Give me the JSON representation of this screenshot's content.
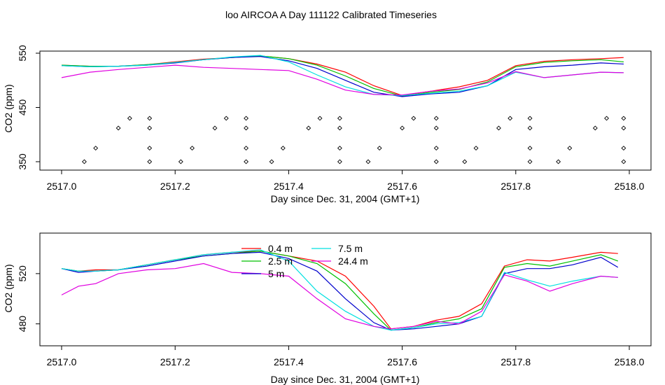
{
  "title": "loo AIRCOA A  Day 111122  Calibrated Timeseries",
  "chart_data": [
    {
      "type": "line",
      "xlabel": "Day since Dec. 31, 2004 (GMT+1)",
      "ylabel": "CO2 (ppm)",
      "xlim": [
        2517.0,
        2518.0
      ],
      "ylim": [
        350,
        550
      ],
      "xticks": [
        2517.0,
        2517.2,
        2517.4,
        2517.6,
        2517.8,
        2518.0
      ],
      "xtick_labels": [
        "2517.0",
        "2517.2",
        "2517.4",
        "2517.6",
        "2517.8",
        "2518.0"
      ],
      "yticks": [
        350,
        450,
        550
      ],
      "ytick_labels": [
        "350",
        "450",
        "550"
      ],
      "grid": false,
      "series": [
        {
          "color": "#ff0000",
          "x": [
            2517.0,
            2517.05,
            2517.1,
            2517.15,
            2517.2,
            2517.25,
            2517.3,
            2517.35,
            2517.4,
            2517.45,
            2517.5,
            2517.55,
            2517.6,
            2517.65,
            2517.7,
            2517.75,
            2517.8,
            2517.85,
            2517.9,
            2517.95,
            2517.99
          ],
          "y": [
            528,
            526,
            526,
            529,
            534,
            539,
            542,
            545,
            540,
            530,
            515,
            490,
            472,
            480,
            488,
            500,
            527,
            535,
            538,
            540,
            542
          ]
        },
        {
          "color": "#00c000",
          "x": [
            2517.0,
            2517.05,
            2517.1,
            2517.15,
            2517.2,
            2517.25,
            2517.3,
            2517.35,
            2517.4,
            2517.45,
            2517.5,
            2517.55,
            2517.6,
            2517.65,
            2517.7,
            2517.75,
            2517.8,
            2517.85,
            2517.9,
            2517.95,
            2517.99
          ],
          "y": [
            528,
            526,
            526,
            529,
            533,
            538,
            542,
            545,
            540,
            528,
            508,
            485,
            471,
            478,
            483,
            497,
            525,
            533,
            536,
            538,
            534
          ]
        },
        {
          "color": "#0000cc",
          "x": [
            2517.0,
            2517.05,
            2517.1,
            2517.15,
            2517.2,
            2517.25,
            2517.3,
            2517.35,
            2517.4,
            2517.45,
            2517.5,
            2517.55,
            2517.6,
            2517.65,
            2517.7,
            2517.75,
            2517.8,
            2517.85,
            2517.9,
            2517.95,
            2517.99
          ],
          "y": [
            527,
            525,
            526,
            528,
            532,
            538,
            542,
            544,
            536,
            522,
            500,
            478,
            470,
            475,
            478,
            490,
            520,
            525,
            528,
            532,
            530
          ]
        },
        {
          "color": "#00e0e0",
          "x": [
            2517.0,
            2517.05,
            2517.1,
            2517.15,
            2517.2,
            2517.25,
            2517.3,
            2517.35,
            2517.4,
            2517.45,
            2517.5,
            2517.55,
            2517.6,
            2517.65,
            2517.7,
            2517.75,
            2517.8,
            2517.85,
            2517.9,
            2517.95,
            2517.99
          ],
          "y": [
            527,
            525,
            526,
            528,
            533,
            538,
            543,
            546,
            534,
            510,
            488,
            474,
            472,
            476,
            480,
            490,
            515,
            505,
            510,
            515,
            514
          ]
        },
        {
          "color": "#e000e0",
          "x": [
            2517.0,
            2517.05,
            2517.1,
            2517.15,
            2517.2,
            2517.25,
            2517.3,
            2517.35,
            2517.4,
            2517.45,
            2517.5,
            2517.55,
            2517.6,
            2517.65,
            2517.7,
            2517.75,
            2517.8,
            2517.85,
            2517.9,
            2517.95,
            2517.99
          ],
          "y": [
            505,
            515,
            520,
            524,
            528,
            524,
            522,
            520,
            518,
            502,
            482,
            474,
            473,
            480,
            484,
            495,
            516,
            505,
            510,
            515,
            514
          ]
        }
      ],
      "points": [
        {
          "x": 2517.04,
          "y": 350
        },
        {
          "x": 2517.06,
          "y": 375
        },
        {
          "x": 2517.1,
          "y": 412
        },
        {
          "x": 2517.12,
          "y": 430
        },
        {
          "x": 2517.155,
          "y": 350
        },
        {
          "x": 2517.155,
          "y": 375
        },
        {
          "x": 2517.155,
          "y": 412
        },
        {
          "x": 2517.155,
          "y": 430
        },
        {
          "x": 2517.21,
          "y": 350
        },
        {
          "x": 2517.23,
          "y": 375
        },
        {
          "x": 2517.27,
          "y": 412
        },
        {
          "x": 2517.29,
          "y": 430
        },
        {
          "x": 2517.325,
          "y": 350
        },
        {
          "x": 2517.325,
          "y": 375
        },
        {
          "x": 2517.325,
          "y": 412
        },
        {
          "x": 2517.325,
          "y": 430
        },
        {
          "x": 2517.37,
          "y": 350
        },
        {
          "x": 2517.39,
          "y": 375
        },
        {
          "x": 2517.435,
          "y": 412
        },
        {
          "x": 2517.455,
          "y": 430
        },
        {
          "x": 2517.49,
          "y": 350
        },
        {
          "x": 2517.49,
          "y": 375
        },
        {
          "x": 2517.49,
          "y": 412
        },
        {
          "x": 2517.49,
          "y": 430
        },
        {
          "x": 2517.54,
          "y": 350
        },
        {
          "x": 2517.56,
          "y": 375
        },
        {
          "x": 2517.6,
          "y": 412
        },
        {
          "x": 2517.62,
          "y": 430
        },
        {
          "x": 2517.66,
          "y": 350
        },
        {
          "x": 2517.66,
          "y": 375
        },
        {
          "x": 2517.66,
          "y": 412
        },
        {
          "x": 2517.66,
          "y": 430
        },
        {
          "x": 2517.71,
          "y": 350
        },
        {
          "x": 2517.73,
          "y": 375
        },
        {
          "x": 2517.77,
          "y": 412
        },
        {
          "x": 2517.79,
          "y": 430
        },
        {
          "x": 2517.825,
          "y": 350
        },
        {
          "x": 2517.825,
          "y": 375
        },
        {
          "x": 2517.825,
          "y": 412
        },
        {
          "x": 2517.825,
          "y": 430
        },
        {
          "x": 2517.875,
          "y": 350
        },
        {
          "x": 2517.895,
          "y": 375
        },
        {
          "x": 2517.94,
          "y": 412
        },
        {
          "x": 2517.96,
          "y": 430
        },
        {
          "x": 2517.99,
          "y": 350
        },
        {
          "x": 2517.99,
          "y": 375
        },
        {
          "x": 2517.99,
          "y": 412
        },
        {
          "x": 2517.99,
          "y": 430
        }
      ]
    },
    {
      "type": "line",
      "xlabel": "Day since Dec. 31, 2004 (GMT+1)",
      "ylabel": "CO2 (ppm)",
      "xlim": [
        2517.0,
        2518.0
      ],
      "ylim": [
        467,
        545
      ],
      "xticks": [
        2517.0,
        2517.2,
        2517.4,
        2517.6,
        2517.8,
        2518.0
      ],
      "xtick_labels": [
        "2517.0",
        "2517.2",
        "2517.4",
        "2517.6",
        "2517.8",
        "2518.0"
      ],
      "yticks": [
        480,
        520
      ],
      "ytick_labels": [
        "480",
        "520"
      ],
      "grid": false,
      "legend": "top-center",
      "series": [
        {
          "name": "0.4 m",
          "color": "#ff0000",
          "x": [
            2517.0,
            2517.03,
            2517.06,
            2517.1,
            2517.15,
            2517.2,
            2517.25,
            2517.3,
            2517.35,
            2517.4,
            2517.45,
            2517.5,
            2517.55,
            2517.58,
            2517.62,
            2517.66,
            2517.7,
            2517.74,
            2517.78,
            2517.82,
            2517.86,
            2517.9,
            2517.95,
            2517.98
          ],
          "y": [
            524,
            522,
            523,
            523,
            527,
            531,
            535,
            537,
            538,
            534,
            530,
            518,
            494,
            476,
            478,
            483,
            486,
            496,
            526,
            531,
            530,
            533,
            537,
            536
          ]
        },
        {
          "name": "2.5 m",
          "color": "#00c000",
          "x": [
            2517.0,
            2517.03,
            2517.06,
            2517.1,
            2517.15,
            2517.2,
            2517.25,
            2517.3,
            2517.35,
            2517.4,
            2517.45,
            2517.5,
            2517.55,
            2517.58,
            2517.62,
            2517.66,
            2517.7,
            2517.74,
            2517.78,
            2517.82,
            2517.86,
            2517.9,
            2517.95,
            2517.98
          ],
          "y": [
            524,
            522,
            522,
            523,
            527,
            531,
            534,
            536,
            538,
            534,
            528,
            512,
            488,
            475,
            477,
            481,
            484,
            492,
            525,
            528,
            526,
            530,
            535,
            530
          ]
        },
        {
          "name": "5 m",
          "color": "#0000cc",
          "x": [
            2517.0,
            2517.03,
            2517.06,
            2517.1,
            2517.15,
            2517.2,
            2517.25,
            2517.3,
            2517.35,
            2517.4,
            2517.45,
            2517.5,
            2517.55,
            2517.58,
            2517.62,
            2517.66,
            2517.7,
            2517.74,
            2517.78,
            2517.82,
            2517.86,
            2517.9,
            2517.95,
            2517.98
          ],
          "y": [
            524,
            521,
            522,
            523,
            526,
            530,
            534,
            536,
            537,
            532,
            522,
            500,
            481,
            475,
            476,
            478,
            480,
            486,
            520,
            524,
            524,
            527,
            533,
            525
          ]
        },
        {
          "name": "7.5 m",
          "color": "#00e0e0",
          "x": [
            2517.0,
            2517.03,
            2517.06,
            2517.1,
            2517.15,
            2517.2,
            2517.25,
            2517.3,
            2517.35,
            2517.4,
            2517.45,
            2517.5,
            2517.55,
            2517.58,
            2517.62,
            2517.66,
            2517.7,
            2517.74,
            2517.78,
            2517.82,
            2517.86,
            2517.9,
            2517.95,
            2517.98
          ],
          "y": [
            524,
            522,
            522,
            523,
            527,
            531,
            535,
            537,
            539,
            530,
            506,
            490,
            478,
            475,
            477,
            480,
            481,
            486,
            521,
            515,
            510,
            514,
            518,
            517
          ]
        },
        {
          "name": "24.4 m",
          "color": "#e000e0",
          "x": [
            2517.0,
            2517.03,
            2517.06,
            2517.1,
            2517.15,
            2517.2,
            2517.25,
            2517.3,
            2517.35,
            2517.4,
            2517.45,
            2517.5,
            2517.55,
            2517.58,
            2517.62,
            2517.66,
            2517.7,
            2517.74,
            2517.78,
            2517.82,
            2517.86,
            2517.9,
            2517.95,
            2517.98
          ],
          "y": [
            503,
            510,
            512,
            520,
            523,
            524,
            528,
            521,
            520,
            518,
            500,
            484,
            478,
            476,
            478,
            482,
            480,
            490,
            519,
            514,
            506,
            512,
            518,
            517
          ]
        }
      ]
    }
  ]
}
